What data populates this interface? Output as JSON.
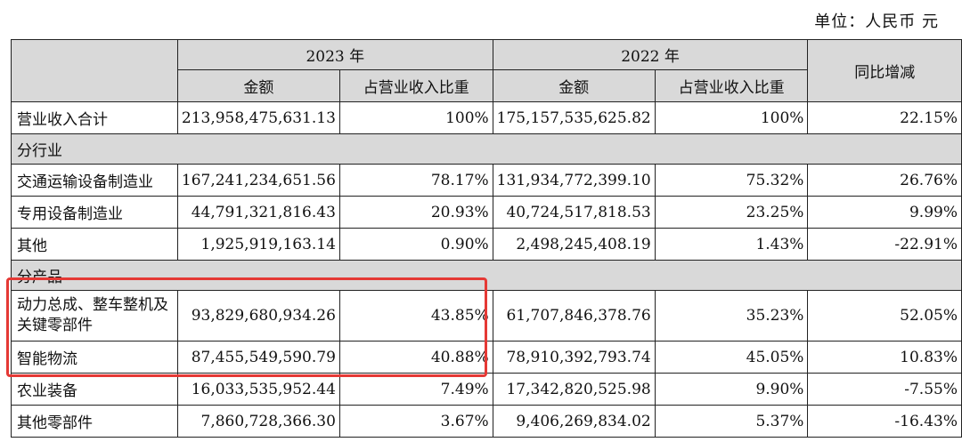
{
  "unit_label": "单位：人民币 元",
  "header": {
    "year_2023": "2023 年",
    "year_2022": "2022 年",
    "yoy": "同比增减",
    "amount": "金额",
    "share": "占营业收入比重"
  },
  "total": {
    "label": "营业收入合计",
    "a2023": "213,958,475,631.13",
    "s2023": "100%",
    "a2022": "175,157,535,625.82",
    "s2022": "100%",
    "yoy": "22.15%"
  },
  "by_industry": {
    "title": "分行业",
    "rows": [
      {
        "label": "交通运输设备制造业",
        "a2023": "167,241,234,651.56",
        "s2023": "78.17%",
        "a2022": "131,934,772,399.10",
        "s2022": "75.32%",
        "yoy": "26.76%"
      },
      {
        "label": "专用设备制造业",
        "a2023": "44,791,321,816.43",
        "s2023": "20.93%",
        "a2022": "40,724,517,818.53",
        "s2022": "23.25%",
        "yoy": "9.99%"
      },
      {
        "label": "其他",
        "a2023": "1,925,919,163.14",
        "s2023": "0.90%",
        "a2022": "2,498,245,408.19",
        "s2022": "1.43%",
        "yoy": "-22.91%"
      }
    ]
  },
  "by_product": {
    "title": "分产品",
    "rows": [
      {
        "label": "动力总成、整车整机及关键零部件",
        "a2023": "93,829,680,934.26",
        "s2023": "43.85%",
        "a2022": "61,707,846,378.76",
        "s2022": "35.23%",
        "yoy": "52.05%"
      },
      {
        "label": "智能物流",
        "a2023": "87,455,549,590.79",
        "s2023": "40.88%",
        "a2022": "78,910,392,793.74",
        "s2022": "45.05%",
        "yoy": "10.83%"
      },
      {
        "label": "农业装备",
        "a2023": "16,033,535,952.44",
        "s2023": "7.49%",
        "a2022": "17,342,820,525.98",
        "s2022": "9.90%",
        "yoy": "-7.55%"
      },
      {
        "label": "其他零部件",
        "a2023": "7,860,728,366.30",
        "s2023": "3.67%",
        "a2022": "9,406,269,834.02",
        "s2022": "5.37%",
        "yoy": "-16.43%"
      }
    ]
  }
}
